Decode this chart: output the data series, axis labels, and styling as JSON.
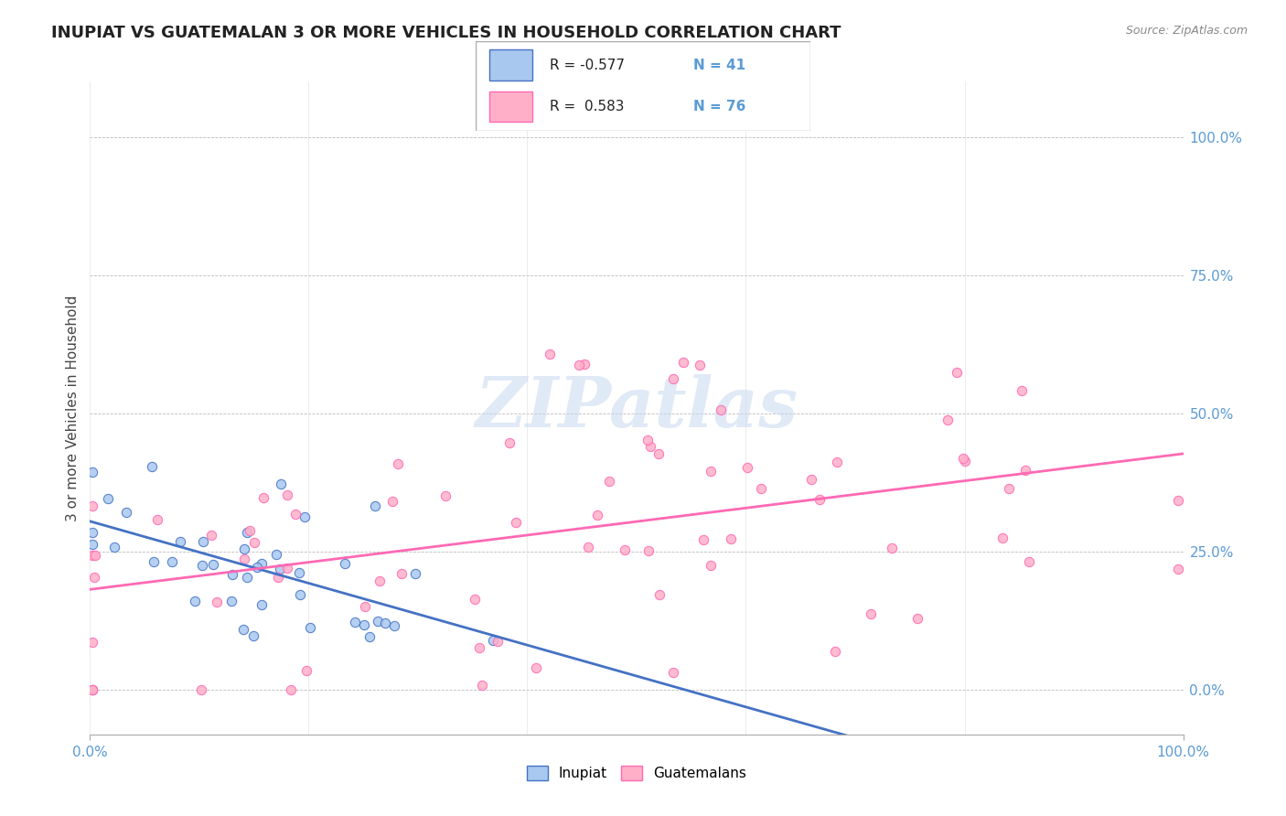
{
  "title": "INUPIAT VS GUATEMALAN 3 OR MORE VEHICLES IN HOUSEHOLD CORRELATION CHART",
  "source": "Source: ZipAtlas.com",
  "ylabel": "3 or more Vehicles in Household",
  "legend_inupiat": "Inupiat",
  "legend_guatemalans": "Guatemalans",
  "r_inupiat": "-0.577",
  "n_inupiat": "41",
  "r_guatemalan": "0.583",
  "n_guatemalan": "76",
  "inupiat_color": "#a8c8f0",
  "guatemalan_color": "#ffb0c8",
  "inupiat_line_color": "#4472c4",
  "guatemalan_line_color": "#ff69b4",
  "watermark": "ZIPatlas",
  "xlim": [
    0,
    100
  ],
  "ylim": [
    -8,
    110
  ],
  "ytick_values": [
    0,
    25,
    50,
    75,
    100
  ],
  "title_fontsize": 13,
  "axis_color": "#5b9bd5",
  "grid_color": "#bbbbbb"
}
